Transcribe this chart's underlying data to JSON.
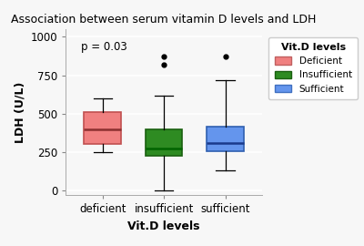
{
  "title": "Association between serum vitamin D levels and LDH",
  "xlabel": "Vit.D levels",
  "ylabel": "LDH (U/L)",
  "pvalue_text": "p = 0.03",
  "categories": [
    "deficient",
    "insufficient",
    "sufficient"
  ],
  "colors": [
    "#F08080",
    "#2E8B22",
    "#6495ED"
  ],
  "legend_title": "Vit.D levels",
  "legend_labels": [
    "Deficient",
    "Insufficient",
    "Sufficient"
  ],
  "legend_colors": [
    "#F08080",
    "#2E8B22",
    "#6495ED"
  ],
  "legend_edge_colors": [
    "#c06060",
    "#1a6010",
    "#4070c0"
  ],
  "ylim": [
    -30,
    1050
  ],
  "yticks": [
    0,
    250,
    500,
    750,
    1000
  ],
  "boxes": [
    {
      "q1": 305,
      "median": 400,
      "q3": 510,
      "whislo": 248,
      "whishi": 600,
      "fliers": []
    },
    {
      "q1": 228,
      "median": 272,
      "q3": 400,
      "whislo": 5,
      "whishi": 615,
      "fliers": [
        820,
        870
      ]
    },
    {
      "q1": 255,
      "median": 310,
      "q3": 415,
      "whislo": 130,
      "whishi": 720,
      "fliers": [
        870
      ]
    }
  ],
  "background_color": "#f7f7f7",
  "plot_bg_color": "#f7f7f7",
  "grid_color": "#ffffff",
  "edge_colors": [
    "#c05050",
    "#1a6010",
    "#3060b0"
  ],
  "median_colors": [
    "#8b3030",
    "#006400",
    "#1a3a8b"
  ],
  "figsize": [
    4.0,
    2.7
  ],
  "dpi": 100,
  "box_width": 0.6
}
